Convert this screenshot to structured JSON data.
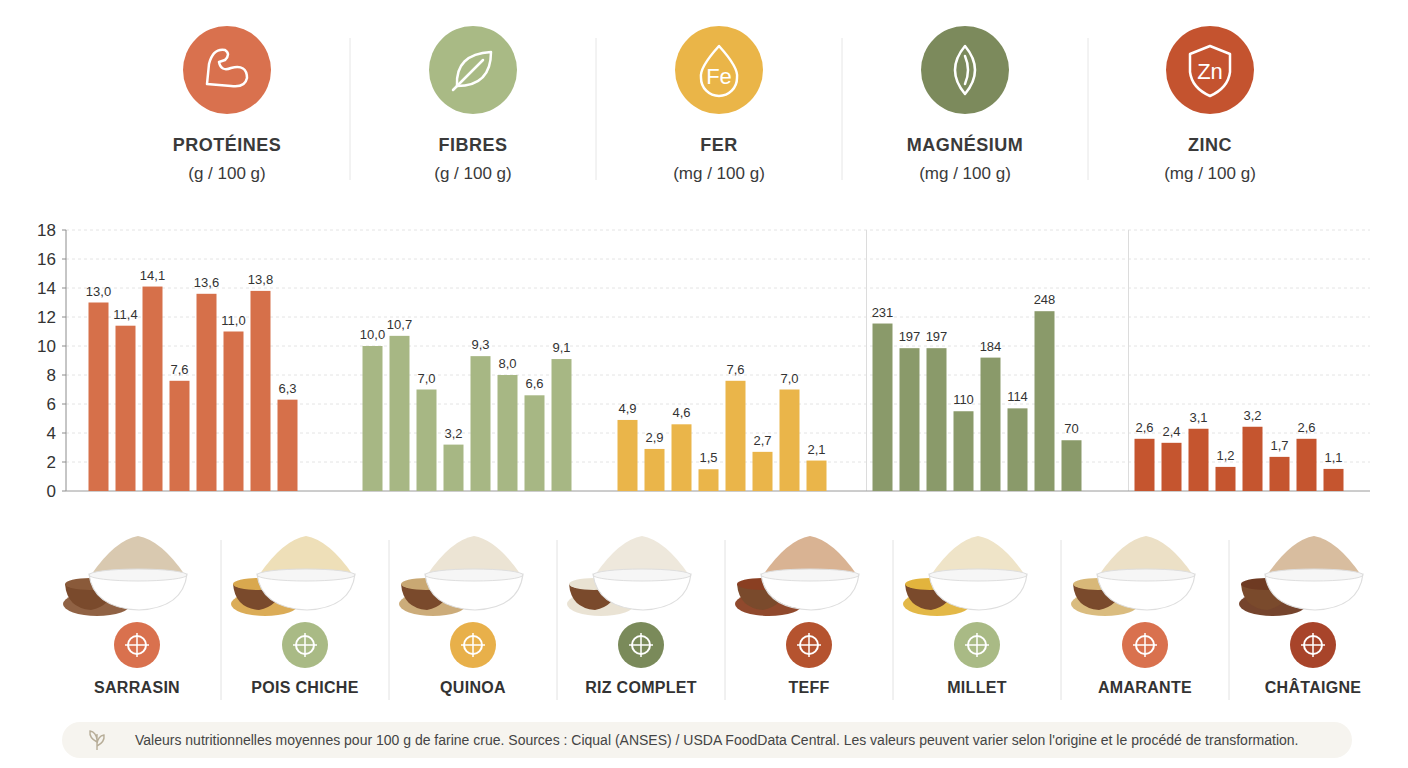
{
  "chart_data": [
    {
      "type": "bar",
      "title": "PROTÉINES",
      "subtitle": "(g / 100 g)",
      "categories": [
        "SARRASIN",
        "POIS CHICHE",
        "QUINOA",
        "RIZ COMPLET",
        "TEFF",
        "MILLET",
        "AMARANTE",
        "CHÂTAIGNE"
      ],
      "values": [
        13.0,
        11.4,
        14.1,
        7.6,
        13.6,
        11.0,
        13.8,
        6.3
      ],
      "value_labels": [
        "13,0",
        "11,4",
        "14,1",
        "7,6",
        "13,6",
        "11,0",
        "13,8",
        "6,3"
      ],
      "color": "#d6704a",
      "ylim": [
        0,
        18
      ],
      "yticks": [
        0,
        2,
        4,
        6,
        8,
        10,
        12,
        14,
        16,
        18
      ],
      "grid": true,
      "data_labels": true
    },
    {
      "type": "bar",
      "title": "FIBRES",
      "subtitle": "(g / 100 g)",
      "values": [
        10.0,
        10.7,
        7.0,
        3.2,
        9.3,
        8.0,
        6.6,
        9.1
      ],
      "value_labels": [
        "10,0",
        "10,7",
        "7,0",
        "3,2",
        "9,3",
        "8,0",
        "6,6",
        "9,1"
      ],
      "color": "#a7b784",
      "ylim": [
        0,
        18
      ],
      "tick_labels": false,
      "data_labels": true
    },
    {
      "type": "bar",
      "title": "FER",
      "subtitle": "(mg / 100 g)",
      "annotations": [
        "Fe"
      ],
      "values": [
        4.9,
        2.9,
        4.6,
        1.5,
        7.6,
        2.7,
        7.0,
        2.1
      ],
      "value_labels": [
        "4,9",
        "2,9",
        "4,6",
        "1,5",
        "7,6",
        "2,7",
        "7,0",
        "2,1"
      ],
      "color": "#eab54a",
      "ylim": [
        0,
        18
      ],
      "tick_labels": false,
      "data_labels": true
    },
    {
      "type": "bar",
      "title": "MAGNÉSIUM",
      "subtitle": "(mg / 100 g)",
      "values": [
        231,
        197,
        197,
        110,
        184,
        114,
        248,
        70
      ],
      "color": "#8a9a6a",
      "ylim": [
        0,
        360
      ],
      "tick_labels": false,
      "data_labels": true
    },
    {
      "type": "bar",
      "title": "ZINC",
      "subtitle": "(mg / 100 g)",
      "annotations": [
        "Zn"
      ],
      "values": [
        2.6,
        2.4,
        3.1,
        1.2,
        3.2,
        1.7,
        2.6,
        1.1
      ],
      "value_labels": [
        "2,6",
        "2,4",
        "3,1",
        "1,2",
        "3,2",
        "1,7",
        "2,6",
        "1,1"
      ],
      "color": "#c5552f",
      "ylim": [
        0,
        13
      ],
      "tick_labels": false,
      "data_labels": true
    }
  ],
  "footnote": "Valeurs nutritionnelles moyennes pour 100 g de farine crue. Sources : Ciqual (ANSES) / USDA FoodData Central. Les valeurs peuvent varier selon l'origine et le procédé de transformation."
}
